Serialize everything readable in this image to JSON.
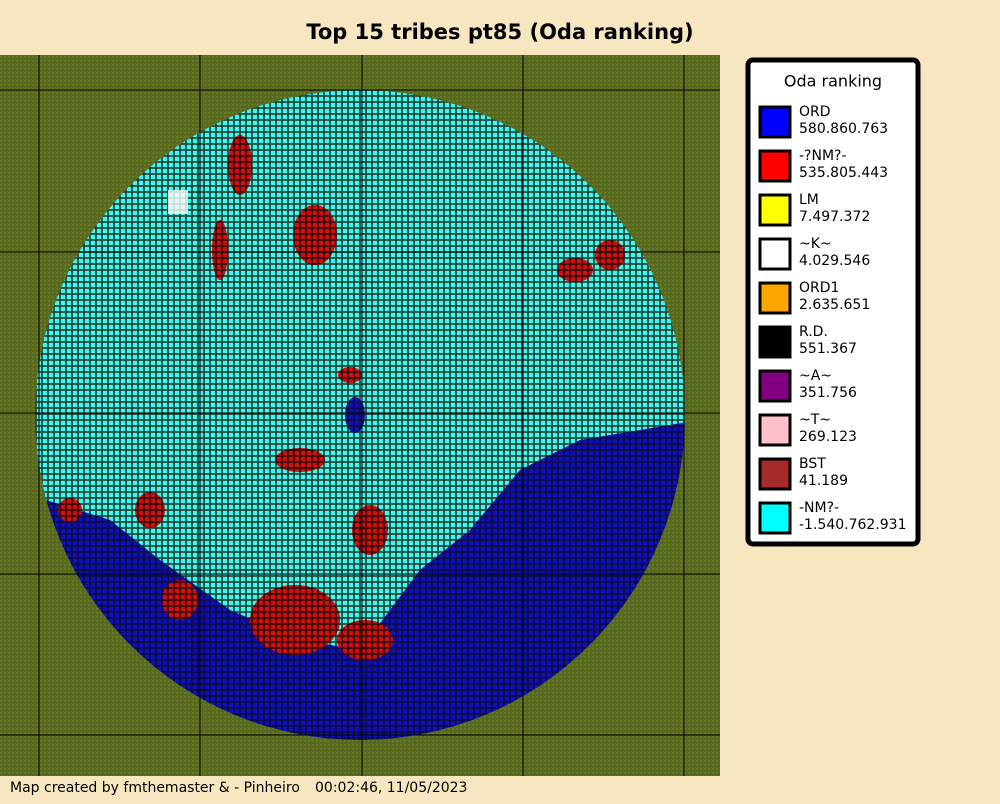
{
  "title": "Top 15 tribes pt85 (Oda ranking)",
  "legend": {
    "title": "Oda ranking",
    "items": [
      {
        "name": "ORD",
        "value": "580.860.763",
        "color": "#0000ff"
      },
      {
        "name": "-?NM?-",
        "value": "535.805.443",
        "color": "#ff0000"
      },
      {
        "name": "LM",
        "value": "7.497.372",
        "color": "#ffff00"
      },
      {
        "name": "~K~",
        "value": "4.029.546",
        "color": "#ffffff"
      },
      {
        "name": "ORD1",
        "value": "2.635.651",
        "color": "#ffa500"
      },
      {
        "name": "R.D.",
        "value": "551.367",
        "color": "#000000"
      },
      {
        "name": "~A~",
        "value": "351.756",
        "color": "#800080"
      },
      {
        "name": "~T~",
        "value": "269.123",
        "color": "#ffc0cb"
      },
      {
        "name": "BST",
        "value": "41.189",
        "color": "#a52a2a"
      },
      {
        "name": "-NM?-",
        "value": "-1.540.762.931",
        "color": "#00ffff"
      }
    ]
  },
  "footer": {
    "credit": "Map created by fmthemaster & - Pinheiro",
    "timestamp": "00:02:46, 11/05/2023"
  }
}
